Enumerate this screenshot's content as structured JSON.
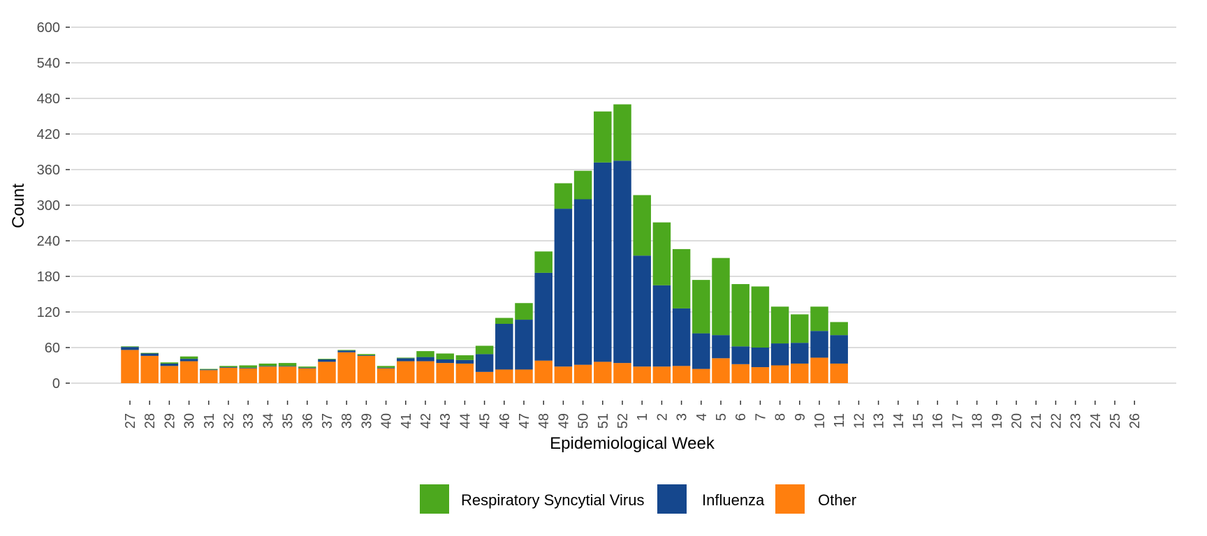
{
  "chart_data": {
    "type": "bar",
    "stacked": true,
    "title": "",
    "xlabel": "Epidemiological Week",
    "ylabel": "Count",
    "ylim": [
      0,
      600
    ],
    "yticks": [
      0,
      60,
      120,
      180,
      240,
      300,
      360,
      420,
      480,
      540,
      600
    ],
    "grid": "horizontal",
    "legend_position": "bottom",
    "categories": [
      "27",
      "28",
      "29",
      "30",
      "31",
      "32",
      "33",
      "34",
      "35",
      "36",
      "37",
      "38",
      "39",
      "40",
      "41",
      "42",
      "43",
      "44",
      "45",
      "46",
      "47",
      "48",
      "49",
      "50",
      "51",
      "52",
      "1",
      "2",
      "3",
      "4",
      "5",
      "6",
      "7",
      "8",
      "9",
      "10",
      "11",
      "12",
      "13",
      "14",
      "15",
      "16",
      "17",
      "18",
      "19",
      "20",
      "21",
      "22",
      "23",
      "24",
      "25",
      "26"
    ],
    "series": [
      {
        "name": "Other",
        "color": "#ff7f0e",
        "values": [
          56,
          46,
          29,
          37,
          22,
          26,
          25,
          28,
          28,
          25,
          36,
          52,
          46,
          25,
          37,
          37,
          34,
          33,
          19,
          23,
          23,
          38,
          28,
          31,
          36,
          34,
          28,
          28,
          29,
          24,
          42,
          32,
          27,
          30,
          33,
          43,
          33,
          0,
          0,
          0,
          0,
          0,
          0,
          0,
          0,
          0,
          0,
          0,
          0,
          0,
          0,
          0
        ]
      },
      {
        "name": "Influenza",
        "color": "#15478d",
        "values": [
          5,
          4,
          4,
          4,
          1,
          1,
          1,
          1,
          1,
          1,
          4,
          3,
          1,
          1,
          5,
          7,
          6,
          6,
          30,
          77,
          84,
          148,
          266,
          279,
          336,
          341,
          187,
          137,
          97,
          60,
          39,
          30,
          33,
          37,
          35,
          45,
          48,
          0,
          0,
          0,
          0,
          0,
          0,
          0,
          0,
          0,
          0,
          0,
          0,
          0,
          0,
          0
        ]
      },
      {
        "name": "Respiratory Syncytial Virus",
        "color": "#4ca81e",
        "values": [
          1,
          1,
          2,
          4,
          1,
          2,
          4,
          4,
          5,
          2,
          1,
          1,
          2,
          3,
          1,
          10,
          10,
          8,
          14,
          10,
          28,
          36,
          43,
          48,
          86,
          95,
          102,
          106,
          100,
          90,
          130,
          105,
          103,
          62,
          48,
          41,
          22,
          0,
          0,
          0,
          0,
          0,
          0,
          0,
          0,
          0,
          0,
          0,
          0,
          0,
          0,
          0
        ]
      }
    ],
    "legend": [
      {
        "label": "Respiratory Syncytial Virus",
        "color": "#4ca81e"
      },
      {
        "label": "Influenza",
        "color": "#15478d"
      },
      {
        "label": "Other",
        "color": "#ff7f0e"
      }
    ]
  }
}
